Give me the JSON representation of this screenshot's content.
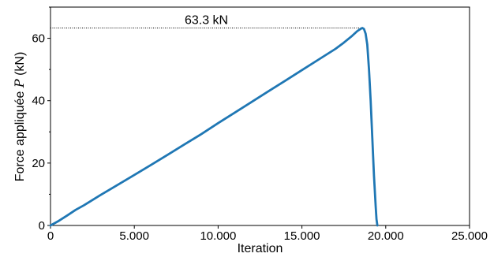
{
  "chart_data": {
    "type": "line",
    "title": "",
    "xlabel": "Iteration",
    "ylabel_prefix": "Force appliquée ",
    "ylabel_symbol": "P",
    "ylabel_suffix": " (kN)",
    "xlim": [
      0,
      25000
    ],
    "ylim": [
      0,
      70
    ],
    "x_ticks": [
      0,
      5000,
      10000,
      15000,
      20000,
      25000
    ],
    "x_tick_labels": [
      "0",
      "5.000",
      "10.000",
      "15.000",
      "20.000",
      "25.000"
    ],
    "y_ticks": [
      0,
      20,
      40,
      60
    ],
    "y_tick_labels": [
      "0",
      "20",
      "40",
      "60"
    ],
    "y_minor_ticks": [
      10,
      30,
      50,
      70
    ],
    "grid": false,
    "legend": "none",
    "line_color": "#1f77b4",
    "annotation": {
      "text": "63.3 kN",
      "value": 63.3
    },
    "series": [
      {
        "x": [
          0,
          500,
          1000,
          1500,
          2000,
          3000,
          4000,
          5000,
          6000,
          7000,
          8000,
          9000,
          10000,
          11000,
          12000,
          13000,
          14000,
          15000,
          16000,
          17000,
          17500,
          18000,
          18300,
          18500,
          18600,
          18700,
          18800,
          18900,
          19000,
          19100,
          19200,
          19300,
          19400,
          19450,
          19500
        ],
        "y": [
          0,
          1.5,
          3.2,
          5.0,
          6.5,
          9.8,
          13.0,
          16.2,
          19.4,
          22.7,
          26.0,
          29.3,
          32.8,
          36.2,
          39.6,
          43.0,
          46.4,
          49.8,
          53.2,
          56.6,
          58.6,
          60.8,
          62.3,
          63.0,
          63.3,
          63.0,
          61.5,
          58.0,
          50.0,
          40.0,
          28.0,
          16.0,
          6.0,
          2.0,
          0
        ]
      }
    ]
  }
}
